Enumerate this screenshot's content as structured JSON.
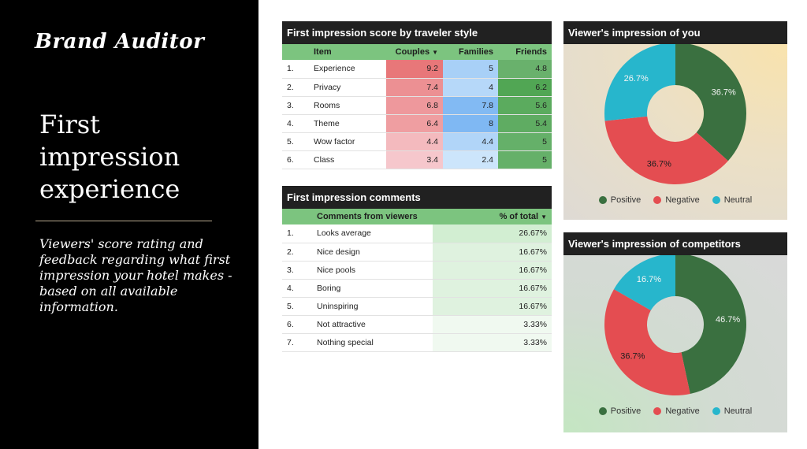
{
  "branding": {
    "logo": "Brand Auditor"
  },
  "hero": {
    "title": "First impression experience",
    "description": "Viewers' score rating and feedback regarding what first impression your hotel makes - based on all available information."
  },
  "score_table": {
    "title": "First impression score by traveler style",
    "columns": {
      "item": "Item",
      "couples": "Couples",
      "families": "Families",
      "friends": "Friends"
    },
    "rows": [
      {
        "rank": "1.",
        "item": "Experience",
        "couples": "9.2",
        "families": "5",
        "friends": "4.8"
      },
      {
        "rank": "2.",
        "item": "Privacy",
        "couples": "7.4",
        "families": "4",
        "friends": "6.2"
      },
      {
        "rank": "3.",
        "item": "Rooms",
        "couples": "6.8",
        "families": "7.8",
        "friends": "5.6"
      },
      {
        "rank": "4.",
        "item": "Theme",
        "couples": "6.4",
        "families": "8",
        "friends": "5.4"
      },
      {
        "rank": "5.",
        "item": "Wow factor",
        "couples": "4.4",
        "families": "4.4",
        "friends": "5"
      },
      {
        "rank": "6.",
        "item": "Class",
        "couples": "3.4",
        "families": "2.4",
        "friends": "5"
      }
    ]
  },
  "comments_table": {
    "title": "First impression comments",
    "columns": {
      "comment": "Comments from viewers",
      "pct": "% of total"
    },
    "rows": [
      {
        "rank": "1.",
        "comment": "Looks average",
        "pct": "26.67%"
      },
      {
        "rank": "2.",
        "comment": "Nice design",
        "pct": "16.67%"
      },
      {
        "rank": "3.",
        "comment": "Nice pools",
        "pct": "16.67%"
      },
      {
        "rank": "4.",
        "comment": "Boring",
        "pct": "16.67%"
      },
      {
        "rank": "5.",
        "comment": "Uninspiring",
        "pct": "16.67%"
      },
      {
        "rank": "6.",
        "comment": "Not attractive",
        "pct": "3.33%"
      },
      {
        "rank": "7.",
        "comment": "Nothing special",
        "pct": "3.33%"
      }
    ]
  },
  "colors": {
    "positive": "#3a7040",
    "negative": "#e44d51",
    "neutral": "#27b6cc",
    "header_bg": "#212121",
    "table_header_bg": "#7cc47f"
  },
  "chart_data": [
    {
      "type": "pie",
      "title": "Viewer's impression of you",
      "categories": [
        "Positive",
        "Negative",
        "Neutral"
      ],
      "values": [
        36.7,
        36.7,
        26.7
      ],
      "labels": [
        "36.7%",
        "36.7%",
        "26.7%"
      ],
      "legend": "bottom"
    },
    {
      "type": "pie",
      "title": "Viewer's impression of competitors",
      "categories": [
        "Positive",
        "Negative",
        "Neutral"
      ],
      "values": [
        46.7,
        36.7,
        16.7
      ],
      "labels": [
        "46.7%",
        "36.7%",
        "16.7%"
      ],
      "legend": "bottom"
    }
  ]
}
